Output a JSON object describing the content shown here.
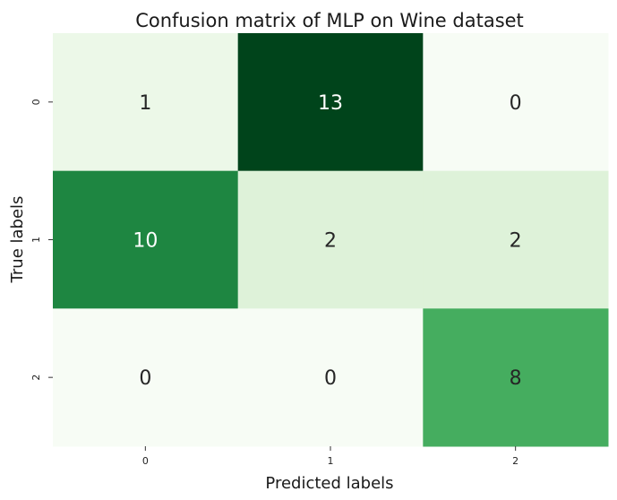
{
  "chart_data": {
    "type": "heatmap",
    "title": "Confusion matrix of MLP on Wine dataset",
    "xlabel": "Predicted labels",
    "ylabel": "True labels",
    "x_categories": [
      "0",
      "1",
      "2"
    ],
    "y_categories": [
      "0",
      "1",
      "2"
    ],
    "values": [
      [
        1,
        13,
        0
      ],
      [
        10,
        2,
        2
      ],
      [
        0,
        0,
        8
      ]
    ],
    "colormap": "Greens",
    "colorbar": false,
    "annotate": true
  }
}
